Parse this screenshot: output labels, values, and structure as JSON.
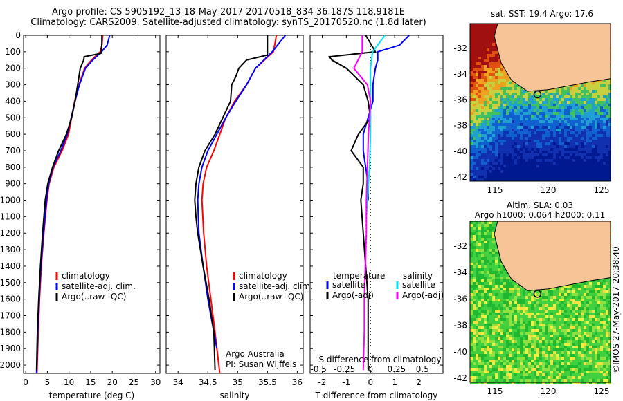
{
  "title": {
    "line1": "Argo profile: CS 5905192_13 18-May-2017 20170518_834 36.187S 118.9181E",
    "line2": "Climatology: CARS2009. Satellite-adjusted climatology: synTS_20170520.nc (1.8d later)"
  },
  "panels": {
    "temp": {
      "xlabel": "temperature (deg C)",
      "xlim": [
        -0.5,
        31
      ],
      "xticks": [
        "0",
        "5",
        "10",
        "15",
        "20",
        "25",
        "30"
      ],
      "legend": [
        "climatology",
        "satellite-adj. clim.",
        "Argo(..raw -QC)"
      ]
    },
    "sal": {
      "xlabel": "salinity",
      "xlim": [
        33.8,
        36.1
      ],
      "xticks": [
        "34",
        "34.5",
        "35",
        "35.5",
        "36"
      ],
      "legend": [
        "climatology",
        "satellite-adj. clim.",
        "Argo(..raw -QC)"
      ],
      "note1": "Argo Australia",
      "note2": "PI: Susan Wijffels"
    },
    "diff": {
      "xlabel": "T difference from climatology",
      "top_label": "S difference from climatology",
      "xlim": [
        -2.5,
        3
      ],
      "xticks": [
        "-2",
        "-1",
        "0",
        "1",
        "2"
      ],
      "sticks": [
        "-0.5",
        "-0.25",
        "0",
        "0.25",
        "0.5"
      ],
      "legend_head_t": "temperature",
      "legend_head_s": "salinity",
      "legend_t": [
        "satellite",
        "Argo(-adj)"
      ],
      "legend_s": [
        "satellite",
        "Argo(-adj)"
      ]
    },
    "map1": {
      "title": "sat. SST: 19.4  Argo: 17.6",
      "yticks": [
        "-32",
        "-34",
        "-36",
        "-38",
        "-40",
        "-42"
      ],
      "xticks": [
        "115",
        "120",
        "125"
      ]
    },
    "map2": {
      "title1": "Altim. SLA: 0.03",
      "title2": "Argo h1000: 0.064 h2000: 0.11",
      "yticks": [
        "-32",
        "-34",
        "-36",
        "-38",
        "-40",
        "-42"
      ],
      "xticks": [
        "115",
        "120",
        "125"
      ]
    }
  },
  "credit": "©IMOS 27-May-2017 20:38:40",
  "ylim": [
    2050,
    0
  ],
  "yticks": [
    "0",
    "100",
    "200",
    "300",
    "400",
    "500",
    "600",
    "700",
    "800",
    "900",
    "1000",
    "1100",
    "1200",
    "1300",
    "1400",
    "1500",
    "1600",
    "1700",
    "1800",
    "1900",
    "2000"
  ],
  "colors": {
    "clim": "#ff0000",
    "sat": "#0000ff",
    "argo": "#000000",
    "sat_s": "#00e5ff",
    "argo_s": "#ff00ff",
    "land": "#f7c497"
  },
  "chart_data": [
    {
      "type": "line",
      "panel": "temp",
      "series": [
        {
          "name": "climatology",
          "color": "#ff0000",
          "depth": [
            0,
            60,
            100,
            150,
            200,
            300,
            400,
            500,
            600,
            700,
            800,
            900,
            1000,
            1200,
            1400,
            1600,
            1800,
            2050
          ],
          "values": [
            17.8,
            17.6,
            17.2,
            15.2,
            13.6,
            12.3,
            11.3,
            10.6,
            9.9,
            8.4,
            6.5,
            5.4,
            4.9,
            4.2,
            3.6,
            3.2,
            2.9,
            2.6
          ]
        },
        {
          "name": "satellite-adj. clim.",
          "color": "#0000ff",
          "depth": [
            0,
            60,
            100,
            150,
            200,
            300,
            400,
            500,
            600,
            700,
            800,
            900,
            1000,
            1200,
            1400,
            1600,
            1800,
            2050
          ],
          "values": [
            19.4,
            18.8,
            17.5,
            15.5,
            13.8,
            12.4,
            11.4,
            10.5,
            9.6,
            8.1,
            6.3,
            5.3,
            4.8,
            4.1,
            3.5,
            3.1,
            2.8,
            2.5
          ]
        },
        {
          "name": "Argo(..raw -QC)",
          "color": "#000000",
          "depth": [
            0,
            50,
            110,
            130,
            150,
            200,
            300,
            400,
            500,
            600,
            700,
            800,
            900,
            1000,
            1200,
            1400,
            1600,
            1800,
            2030
          ],
          "values": [
            17.6,
            17.6,
            17.4,
            13.5,
            13.4,
            12.6,
            12.0,
            11.4,
            10.6,
            9.4,
            7.6,
            6.2,
            5.1,
            4.5,
            3.9,
            3.4,
            3.0,
            2.7,
            2.5
          ]
        }
      ]
    },
    {
      "type": "line",
      "panel": "sal",
      "series": [
        {
          "name": "climatology",
          "color": "#ff0000",
          "depth": [
            0,
            100,
            200,
            300,
            400,
            500,
            600,
            700,
            800,
            900,
            1000,
            1200,
            1400,
            1600,
            1800,
            2050
          ],
          "values": [
            35.65,
            35.6,
            35.3,
            35.15,
            34.95,
            34.8,
            34.7,
            34.6,
            34.48,
            34.42,
            34.4,
            34.43,
            34.48,
            34.55,
            34.62,
            34.7
          ]
        },
        {
          "name": "satellite-adj. clim.",
          "color": "#0000ff",
          "depth": [
            0,
            100,
            200,
            300,
            400,
            500,
            600,
            700,
            800,
            900,
            1000,
            1200,
            1400,
            1600,
            1800,
            1900
          ],
          "values": [
            35.8,
            35.58,
            35.3,
            35.15,
            34.97,
            34.8,
            34.65,
            34.5,
            34.4,
            34.35,
            34.33,
            34.35,
            34.42,
            34.5,
            34.6,
            34.65
          ]
        },
        {
          "name": "Argo(..raw -QC)",
          "color": "#000000",
          "depth": [
            0,
            100,
            120,
            150,
            200,
            250,
            300,
            400,
            500,
            600,
            700,
            800,
            900,
            1000,
            1100,
            1200,
            1400,
            1600,
            1800,
            2030
          ],
          "values": [
            35.5,
            35.5,
            35.5,
            35.15,
            35.02,
            34.97,
            34.9,
            34.88,
            34.75,
            34.62,
            34.45,
            34.35,
            34.3,
            34.28,
            34.3,
            34.33,
            34.42,
            34.52,
            34.6,
            34.62
          ]
        }
      ]
    },
    {
      "type": "line",
      "panel": "diff",
      "series": [
        {
          "name": "temperature satellite",
          "color": "#0000ff",
          "depth": [
            0,
            60,
            100,
            150,
            200,
            300,
            400,
            500,
            600,
            700,
            800,
            900,
            1000
          ],
          "values": [
            1.6,
            1.2,
            0.3,
            0.3,
            0.2,
            0.1,
            0.1,
            -0.1,
            -0.3,
            -0.3,
            -0.2,
            -0.1,
            -0.1
          ]
        },
        {
          "name": "temperature Argo(-adj)",
          "color": "#000000",
          "depth": [
            0,
            50,
            100,
            130,
            150,
            200,
            300,
            400,
            500,
            600,
            700,
            800,
            900,
            1000,
            1200,
            1400,
            1600,
            1800,
            2030
          ],
          "values": [
            -0.2,
            0.0,
            0.2,
            -1.7,
            -1.6,
            -1.0,
            -0.3,
            -0.1,
            0.0,
            -0.5,
            -0.8,
            -0.3,
            -0.3,
            -0.4,
            -0.3,
            -0.2,
            -0.1,
            -0.1,
            -0.1
          ]
        },
        {
          "name": "salinity satellite",
          "color": "#00e5ff",
          "depth": [
            0,
            100,
            200,
            400,
            600,
            800,
            1000,
            1100
          ],
          "values": [
            0.14,
            0.02,
            0.0,
            0.0,
            0.0,
            -0.01,
            -0.03,
            -0.04
          ]
        },
        {
          "name": "salinity Argo(-adj)",
          "color": "#ff00ff",
          "depth": [
            0,
            50,
            100,
            150,
            200,
            300,
            400,
            500,
            600,
            800,
            1000,
            1200,
            1400,
            1600,
            1800,
            2030
          ],
          "values": [
            -0.08,
            -0.08,
            -0.08,
            -0.12,
            -0.16,
            -0.03,
            0.0,
            -0.01,
            -0.02,
            -0.03,
            -0.04,
            -0.04,
            -0.05,
            -0.06,
            -0.06,
            -0.07
          ]
        }
      ]
    }
  ]
}
